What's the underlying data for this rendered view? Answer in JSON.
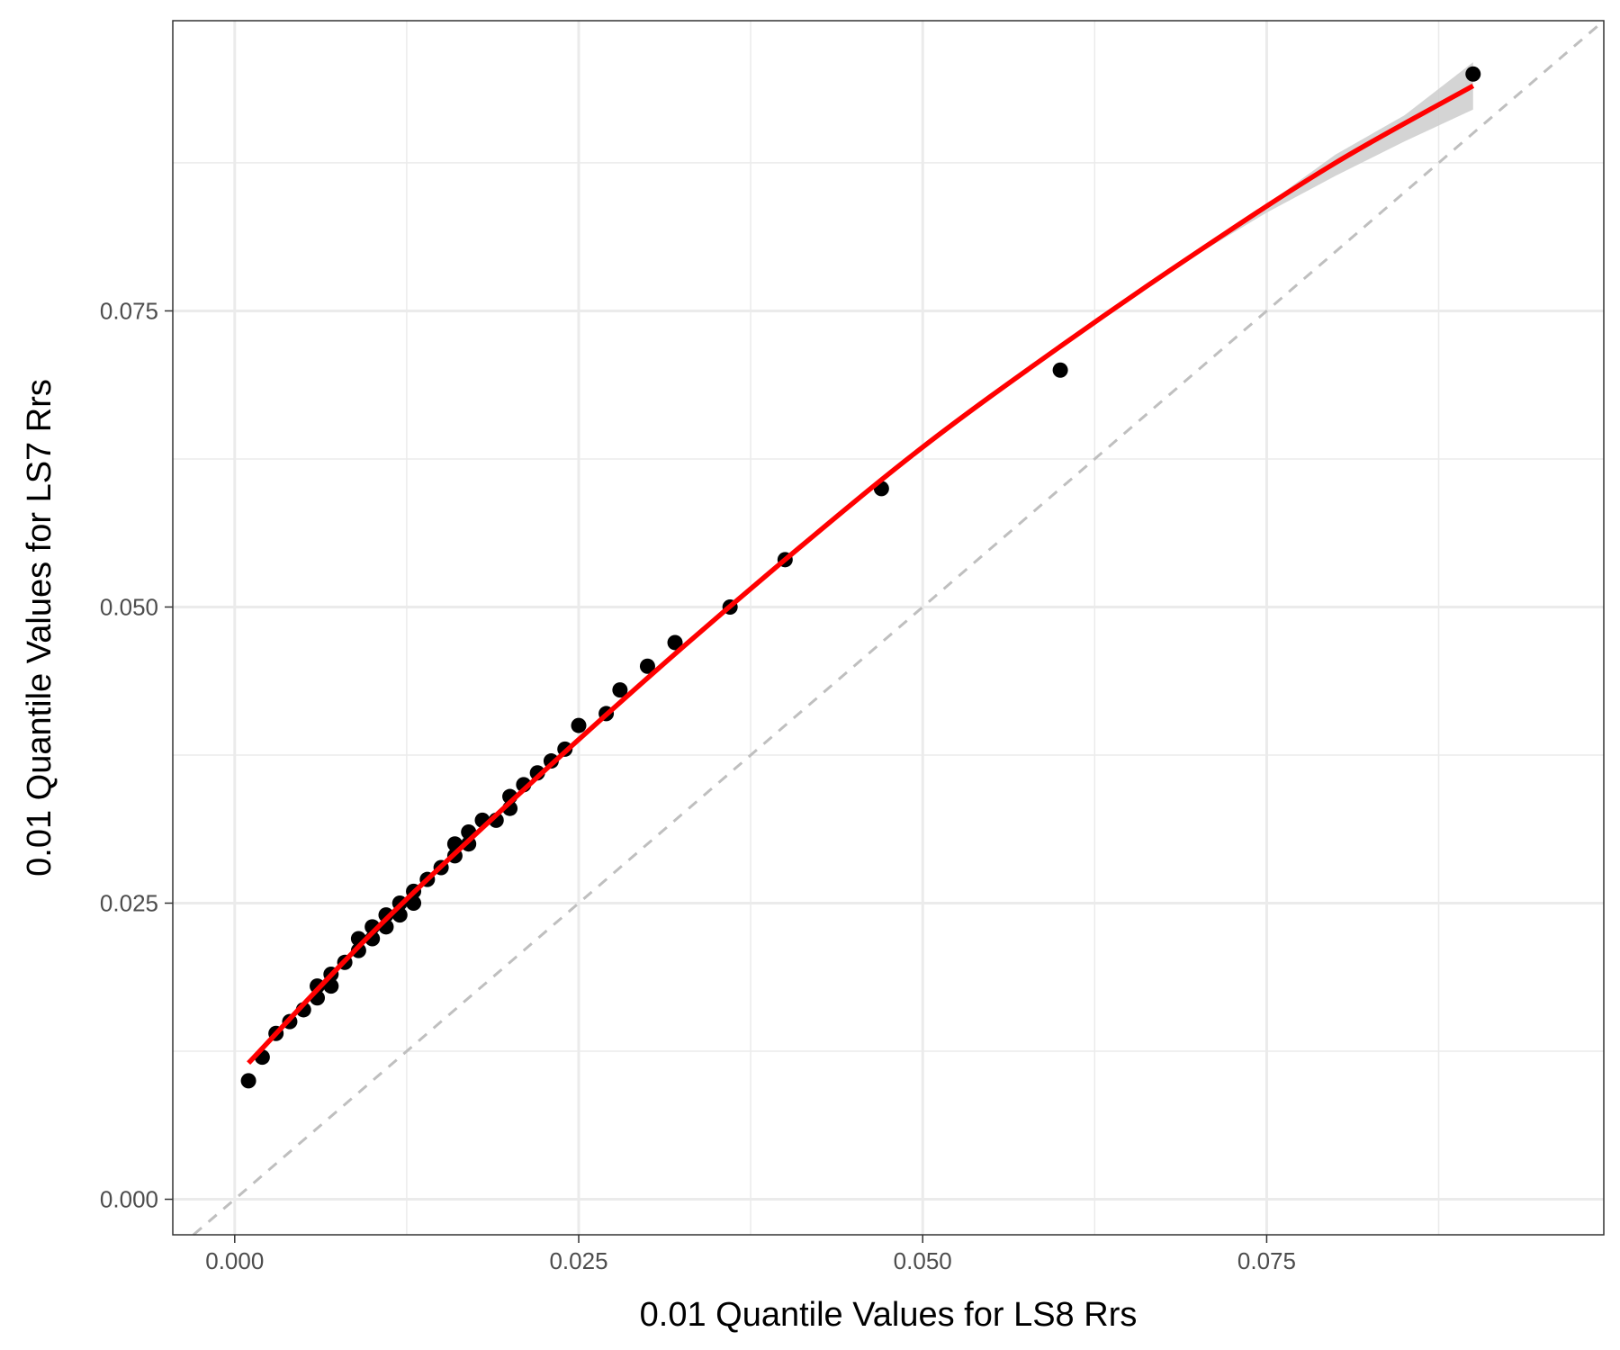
{
  "chart_data": {
    "type": "scatter",
    "title": "",
    "xlabel": "0.01 Quantile Values for LS8 Rrs",
    "ylabel": "0.01 Quantile Values for LS7 Rrs",
    "xlim": [
      -0.0045,
      0.0995
    ],
    "ylim": [
      -0.003,
      0.0995
    ],
    "x_ticks": [
      0.0,
      0.025,
      0.05,
      0.075
    ],
    "x_tick_labels": [
      "0.000",
      "0.025",
      "0.050",
      "0.075"
    ],
    "y_ticks": [
      0.0,
      0.025,
      0.05,
      0.075
    ],
    "y_tick_labels": [
      "0.000",
      "0.025",
      "0.050",
      "0.075"
    ],
    "grid": true,
    "points": {
      "color": "#000000",
      "x": [
        0.001,
        0.002,
        0.003,
        0.004,
        0.005,
        0.006,
        0.006,
        0.007,
        0.007,
        0.008,
        0.009,
        0.009,
        0.01,
        0.01,
        0.011,
        0.011,
        0.012,
        0.012,
        0.013,
        0.013,
        0.014,
        0.015,
        0.016,
        0.016,
        0.017,
        0.017,
        0.018,
        0.019,
        0.02,
        0.02,
        0.021,
        0.022,
        0.023,
        0.024,
        0.025,
        0.027,
        0.028,
        0.03,
        0.032,
        0.036,
        0.04,
        0.047,
        0.06,
        0.09
      ],
      "y": [
        0.01,
        0.012,
        0.014,
        0.015,
        0.016,
        0.017,
        0.018,
        0.018,
        0.019,
        0.02,
        0.021,
        0.022,
        0.022,
        0.023,
        0.023,
        0.024,
        0.024,
        0.025,
        0.025,
        0.026,
        0.027,
        0.028,
        0.029,
        0.03,
        0.03,
        0.031,
        0.032,
        0.032,
        0.033,
        0.034,
        0.035,
        0.036,
        0.037,
        0.038,
        0.04,
        0.041,
        0.043,
        0.045,
        0.047,
        0.05,
        0.054,
        0.06,
        0.07,
        0.095
      ]
    },
    "fit_line": {
      "color": "#ff0000",
      "x": [
        0.001,
        0.01,
        0.02,
        0.03,
        0.04,
        0.05,
        0.06,
        0.07,
        0.08,
        0.09
      ],
      "y": [
        0.0115,
        0.0225,
        0.0335,
        0.044,
        0.054,
        0.0635,
        0.072,
        0.08,
        0.0875,
        0.094
      ]
    },
    "confidence_band": {
      "color": "#cccccc",
      "x": [
        0.07,
        0.075,
        0.08,
        0.085,
        0.09
      ],
      "lower": [
        0.0798,
        0.0833,
        0.0864,
        0.0893,
        0.092
      ],
      "upper": [
        0.0802,
        0.084,
        0.0882,
        0.0915,
        0.096
      ]
    },
    "reference_line": {
      "slope": 1,
      "intercept": 0,
      "color": "#bfbfbf",
      "style": "dashed"
    }
  }
}
